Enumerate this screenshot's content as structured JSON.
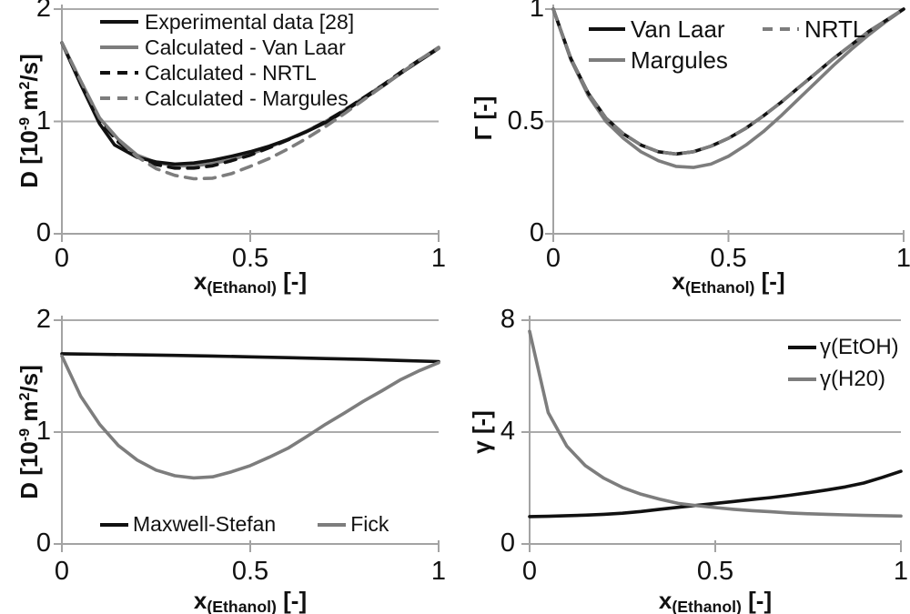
{
  "figure": {
    "background": "#ffffff",
    "text_color": "#111111",
    "axis_color": "#a3a3a3",
    "grid_color": "#ababab",
    "series_black": "#111111",
    "series_gray": "#7d7d7d"
  },
  "chart_data": [
    {
      "type": "line",
      "title": "",
      "name": "diffusion-models-comparison",
      "xlabel": "x(Ethanol) [-]",
      "ylabel": "D [10-9 m2/s]",
      "xlabel_parts": [
        {
          "t": "x"
        },
        {
          "t": "(Ethanol)",
          "style": "sub"
        },
        {
          "t": " [-]"
        }
      ],
      "ylabel_parts": [
        {
          "t": "D [10"
        },
        {
          "t": "-9",
          "style": "sup"
        },
        {
          "t": " m"
        },
        {
          "t": "2",
          "style": "sup"
        },
        {
          "t": "/s]"
        }
      ],
      "xlim": [
        0,
        1
      ],
      "ylim": [
        0,
        2
      ],
      "xticks": [
        {
          "v": 0,
          "label": "0"
        },
        {
          "v": 0.5,
          "label": "0.5"
        },
        {
          "v": 1,
          "label": "1"
        }
      ],
      "yticks": [
        {
          "v": 0,
          "label": "0"
        },
        {
          "v": 1,
          "label": "1"
        },
        {
          "v": 2,
          "label": "2"
        }
      ],
      "grid": "horizontal",
      "legend_position": "top-left-inside",
      "legend_order": [
        2,
        0,
        1,
        3
      ],
      "series": [
        {
          "name": "Calculated - Van Laar",
          "color": "#7d7d7d",
          "dash": "solid",
          "x": [
            0,
            0.05,
            0.1,
            0.15,
            0.2,
            0.25,
            0.3,
            0.35,
            0.4,
            0.45,
            0.5,
            0.55,
            0.6,
            0.65,
            0.7,
            0.75,
            0.8,
            0.85,
            0.9,
            0.95,
            1
          ],
          "y": [
            1.7,
            1.36,
            1.03,
            0.84,
            0.7,
            0.635,
            0.605,
            0.605,
            0.625,
            0.66,
            0.71,
            0.77,
            0.84,
            0.915,
            1.0,
            1.1,
            1.21,
            1.32,
            1.43,
            1.55,
            1.66
          ]
        },
        {
          "name": "Calculated - NRTL",
          "color": "#111111",
          "dash": "dashed",
          "x": [
            0,
            0.05,
            0.1,
            0.15,
            0.2,
            0.25,
            0.3,
            0.35,
            0.4,
            0.45,
            0.5,
            0.55,
            0.6,
            0.65,
            0.7,
            0.75,
            0.8,
            0.85,
            0.9,
            0.95,
            1
          ],
          "y": [
            1.7,
            1.35,
            1.01,
            0.815,
            0.685,
            0.615,
            0.585,
            0.585,
            0.605,
            0.65,
            0.7,
            0.765,
            0.835,
            0.91,
            1.0,
            1.1,
            1.21,
            1.32,
            1.44,
            1.55,
            1.65
          ]
        },
        {
          "name": "Experimental data [28]",
          "color": "#111111",
          "dash": "solid",
          "x": [
            0,
            0.05,
            0.1,
            0.14,
            0.2,
            0.25,
            0.3,
            0.35,
            0.4,
            0.45,
            0.5,
            0.55,
            0.6,
            0.65,
            0.7,
            0.75,
            0.8,
            0.85,
            0.9,
            0.95,
            1
          ],
          "y": [
            1.7,
            1.33,
            0.98,
            0.79,
            0.68,
            0.64,
            0.62,
            0.63,
            0.655,
            0.69,
            0.73,
            0.78,
            0.84,
            0.91,
            0.99,
            1.09,
            1.2,
            1.31,
            1.43,
            1.54,
            1.65
          ]
        },
        {
          "name": "Calculated - Margules",
          "color": "#7d7d7d",
          "dash": "dashed",
          "x": [
            0,
            0.05,
            0.1,
            0.15,
            0.2,
            0.25,
            0.3,
            0.35,
            0.4,
            0.45,
            0.5,
            0.55,
            0.6,
            0.65,
            0.7,
            0.75,
            0.8,
            0.85,
            0.9,
            0.95,
            1
          ],
          "y": [
            1.7,
            1.36,
            1.03,
            0.84,
            0.685,
            0.58,
            0.52,
            0.49,
            0.495,
            0.535,
            0.6,
            0.67,
            0.755,
            0.85,
            0.955,
            1.07,
            1.19,
            1.31,
            1.43,
            1.55,
            1.65
          ]
        }
      ]
    },
    {
      "type": "line",
      "title": "",
      "name": "thermodynamic-factor",
      "xlabel": "x(Ethanol) [-]",
      "ylabel": "Γ [-]",
      "xlabel_parts": [
        {
          "t": "x"
        },
        {
          "t": "(Ethanol)",
          "style": "sub"
        },
        {
          "t": " [-]"
        }
      ],
      "ylabel_parts": [
        {
          "t": "Γ [-]"
        }
      ],
      "xlim": [
        0,
        1
      ],
      "ylim": [
        0,
        1
      ],
      "xticks": [
        {
          "v": 0,
          "label": "0"
        },
        {
          "v": 0.5,
          "label": "0.5"
        },
        {
          "v": 1,
          "label": "1"
        }
      ],
      "yticks": [
        {
          "v": 0,
          "label": "0"
        },
        {
          "v": 0.5,
          "label": "0.5"
        },
        {
          "v": 1,
          "label": "1"
        }
      ],
      "grid": "horizontal",
      "legend_position": "top-inside-two-columns",
      "legend_order": [
        1,
        0,
        2
      ],
      "series": [
        {
          "name": "Margules",
          "color": "#7d7d7d",
          "dash": "solid",
          "x": [
            0,
            0.05,
            0.1,
            0.15,
            0.2,
            0.25,
            0.3,
            0.35,
            0.4,
            0.45,
            0.5,
            0.55,
            0.6,
            0.65,
            0.7,
            0.75,
            0.8,
            0.85,
            0.9,
            0.95,
            1
          ],
          "y": [
            1.0,
            0.775,
            0.615,
            0.5,
            0.425,
            0.365,
            0.325,
            0.3,
            0.295,
            0.31,
            0.345,
            0.395,
            0.455,
            0.525,
            0.6,
            0.675,
            0.75,
            0.82,
            0.885,
            0.945,
            1.0
          ]
        },
        {
          "name": "Van Laar",
          "color": "#111111",
          "dash": "solid",
          "x": [
            0,
            0.05,
            0.1,
            0.15,
            0.2,
            0.25,
            0.3,
            0.35,
            0.4,
            0.45,
            0.5,
            0.55,
            0.6,
            0.65,
            0.7,
            0.75,
            0.8,
            0.85,
            0.9,
            0.95,
            1
          ],
          "y": [
            1.0,
            0.78,
            0.625,
            0.515,
            0.445,
            0.395,
            0.365,
            0.355,
            0.365,
            0.39,
            0.425,
            0.47,
            0.525,
            0.585,
            0.65,
            0.715,
            0.78,
            0.84,
            0.9,
            0.95,
            1.0
          ]
        },
        {
          "name": "NRTL",
          "color": "#7d7d7d",
          "dash": "dashed",
          "x": [
            0,
            0.05,
            0.1,
            0.15,
            0.2,
            0.25,
            0.3,
            0.35,
            0.4,
            0.45,
            0.5,
            0.55,
            0.6,
            0.65,
            0.7,
            0.75,
            0.8,
            0.85,
            0.9,
            0.95,
            1
          ],
          "y": [
            1.0,
            0.78,
            0.625,
            0.515,
            0.445,
            0.395,
            0.365,
            0.355,
            0.365,
            0.39,
            0.425,
            0.47,
            0.525,
            0.585,
            0.65,
            0.715,
            0.78,
            0.84,
            0.9,
            0.95,
            1.0
          ]
        }
      ]
    },
    {
      "type": "line",
      "title": "",
      "name": "maxwell-stefan-vs-fick-diffusion",
      "xlabel": "x(Ethanol) [-]",
      "ylabel": "D [10-9 m2/s]",
      "xlabel_parts": [
        {
          "t": "x"
        },
        {
          "t": "(Ethanol)",
          "style": "sub"
        },
        {
          "t": " [-]"
        }
      ],
      "ylabel_parts": [
        {
          "t": "D [10"
        },
        {
          "t": "-9",
          "style": "sup"
        },
        {
          "t": " m"
        },
        {
          "t": "2",
          "style": "sup"
        },
        {
          "t": "/s]"
        }
      ],
      "xlim": [
        0,
        1
      ],
      "ylim": [
        0,
        2
      ],
      "xticks": [
        {
          "v": 0,
          "label": "0"
        },
        {
          "v": 0.5,
          "label": "0.5"
        },
        {
          "v": 1,
          "label": "1"
        }
      ],
      "yticks": [
        {
          "v": 0,
          "label": "0"
        },
        {
          "v": 1,
          "label": "1"
        },
        {
          "v": 2,
          "label": "2"
        }
      ],
      "grid": "horizontal",
      "legend_position": "bottom-inside-row",
      "legend_order": [
        0,
        1
      ],
      "series": [
        {
          "name": "Maxwell-Stefan",
          "color": "#111111",
          "dash": "solid",
          "x": [
            0,
            0.1,
            0.2,
            0.3,
            0.4,
            0.5,
            0.6,
            0.7,
            0.8,
            0.9,
            1
          ],
          "y": [
            1.7,
            1.695,
            1.69,
            1.685,
            1.68,
            1.672,
            1.665,
            1.657,
            1.65,
            1.64,
            1.63
          ]
        },
        {
          "name": "Fick",
          "color": "#7d7d7d",
          "dash": "solid",
          "x": [
            0,
            0.05,
            0.1,
            0.15,
            0.2,
            0.25,
            0.3,
            0.35,
            0.4,
            0.45,
            0.5,
            0.55,
            0.6,
            0.65,
            0.7,
            0.75,
            0.8,
            0.85,
            0.9,
            0.95,
            1
          ],
          "y": [
            1.68,
            1.32,
            1.07,
            0.88,
            0.75,
            0.66,
            0.61,
            0.59,
            0.6,
            0.645,
            0.7,
            0.775,
            0.855,
            0.96,
            1.07,
            1.17,
            1.275,
            1.37,
            1.47,
            1.55,
            1.62
          ]
        }
      ]
    },
    {
      "type": "line",
      "title": "",
      "name": "activity-coefficients",
      "xlabel": "x(Ethanol) [-]",
      "ylabel": "γ [-]",
      "xlabel_parts": [
        {
          "t": "x"
        },
        {
          "t": "(Ethanol)",
          "style": "sub"
        },
        {
          "t": " [-]"
        }
      ],
      "ylabel_parts": [
        {
          "t": "γ [-]"
        }
      ],
      "xlim": [
        0,
        1
      ],
      "ylim": [
        0,
        8
      ],
      "xticks": [
        {
          "v": 0,
          "label": "0"
        },
        {
          "v": 0.5,
          "label": "0.5"
        },
        {
          "v": 1,
          "label": "1"
        }
      ],
      "yticks": [
        {
          "v": 0,
          "label": "0"
        },
        {
          "v": 4,
          "label": "4"
        },
        {
          "v": 8,
          "label": "8"
        }
      ],
      "grid": "horizontal",
      "legend_position": "top-right-inside",
      "legend_order": [
        0,
        1
      ],
      "series": [
        {
          "name": "γ(EtOH)",
          "color": "#111111",
          "dash": "solid",
          "x": [
            0,
            0.05,
            0.1,
            0.15,
            0.2,
            0.25,
            0.3,
            0.35,
            0.4,
            0.45,
            0.5,
            0.55,
            0.6,
            0.65,
            0.7,
            0.75,
            0.8,
            0.85,
            0.9,
            0.95,
            1
          ],
          "y": [
            0.98,
            0.99,
            1.01,
            1.03,
            1.06,
            1.1,
            1.16,
            1.24,
            1.31,
            1.38,
            1.45,
            1.52,
            1.59,
            1.66,
            1.74,
            1.83,
            1.93,
            2.04,
            2.18,
            2.38,
            2.6
          ]
        },
        {
          "name": "γ(H20)",
          "color": "#7d7d7d",
          "dash": "solid",
          "x": [
            0,
            0.05,
            0.1,
            0.15,
            0.2,
            0.25,
            0.3,
            0.35,
            0.4,
            0.45,
            0.5,
            0.55,
            0.6,
            0.65,
            0.7,
            0.75,
            0.8,
            0.85,
            0.9,
            0.95,
            1
          ],
          "y": [
            7.6,
            4.7,
            3.5,
            2.8,
            2.35,
            2.02,
            1.78,
            1.6,
            1.45,
            1.37,
            1.3,
            1.24,
            1.19,
            1.15,
            1.11,
            1.08,
            1.06,
            1.04,
            1.02,
            1.01,
            1.0
          ]
        }
      ]
    }
  ]
}
